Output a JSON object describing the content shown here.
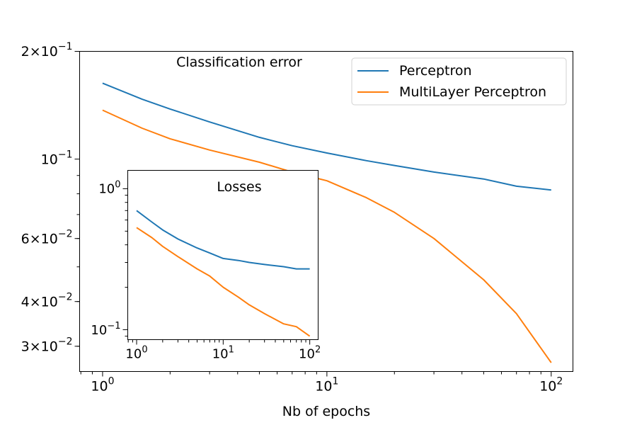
{
  "chart_data": [
    {
      "type": "line",
      "title": "Classification error",
      "xlabel": "Nb of epochs",
      "ylabel": "",
      "xscale": "log",
      "yscale": "log",
      "xlim": [
        0.79,
        125
      ],
      "ylim": [
        0.0255,
        0.2
      ],
      "x_ticks": [
        {
          "value": 1,
          "base": "10",
          "exp": "0"
        },
        {
          "value": 10,
          "base": "10",
          "exp": "1"
        },
        {
          "value": 100,
          "base": "10",
          "exp": "2"
        }
      ],
      "y_ticks": [
        {
          "value": 0.2,
          "mant": "2",
          "base": "10",
          "exp": "−1"
        },
        {
          "value": 0.1,
          "mant": "",
          "base": "10",
          "exp": "−1"
        },
        {
          "value": 0.06,
          "mant": "6",
          "base": "10",
          "exp": "−2"
        },
        {
          "value": 0.04,
          "mant": "4",
          "base": "10",
          "exp": "−2"
        },
        {
          "value": 0.03,
          "mant": "3",
          "base": "10",
          "exp": "−2"
        }
      ],
      "legend_placement": "upper right",
      "x": [
        1,
        1.5,
        2,
        3,
        5,
        7,
        10,
        15,
        20,
        30,
        50,
        70,
        100
      ],
      "series": [
        {
          "name": "Perceptron",
          "color": "#1f77b4",
          "values": [
            0.163,
            0.147,
            0.138,
            0.127,
            0.115,
            0.109,
            0.104,
            0.099,
            0.096,
            0.092,
            0.088,
            0.084,
            0.082
          ]
        },
        {
          "name": "MultiLayer Perceptron",
          "color": "#ff7f0e",
          "values": [
            0.137,
            0.122,
            0.114,
            0.106,
            0.098,
            0.092,
            0.087,
            0.078,
            0.071,
            0.06,
            0.046,
            0.037,
            0.027
          ]
        }
      ]
    },
    {
      "type": "line",
      "title": "Losses",
      "xscale": "log",
      "yscale": "log",
      "xlim": [
        0.79,
        125
      ],
      "ylim": [
        0.085,
        1.35
      ],
      "x_ticks": [
        {
          "value": 1,
          "base": "10",
          "exp": "0"
        },
        {
          "value": 10,
          "base": "10",
          "exp": "1"
        },
        {
          "value": 100,
          "base": "10",
          "exp": "2"
        }
      ],
      "y_ticks": [
        {
          "value": 1,
          "mant": "",
          "base": "10",
          "exp": "0"
        },
        {
          "value": 0.1,
          "mant": "",
          "base": "10",
          "exp": "−1"
        }
      ],
      "x": [
        1,
        1.5,
        2,
        3,
        5,
        7,
        10,
        15,
        20,
        30,
        50,
        70,
        100
      ],
      "series": [
        {
          "name": "Perceptron",
          "color": "#1f77b4",
          "values": [
            0.7,
            0.58,
            0.51,
            0.44,
            0.38,
            0.35,
            0.32,
            0.31,
            0.3,
            0.29,
            0.28,
            0.27,
            0.27
          ]
        },
        {
          "name": "MultiLayer Perceptron",
          "color": "#ff7f0e",
          "values": [
            0.53,
            0.45,
            0.39,
            0.33,
            0.27,
            0.24,
            0.2,
            0.17,
            0.15,
            0.13,
            0.11,
            0.105,
            0.09
          ]
        }
      ]
    }
  ]
}
